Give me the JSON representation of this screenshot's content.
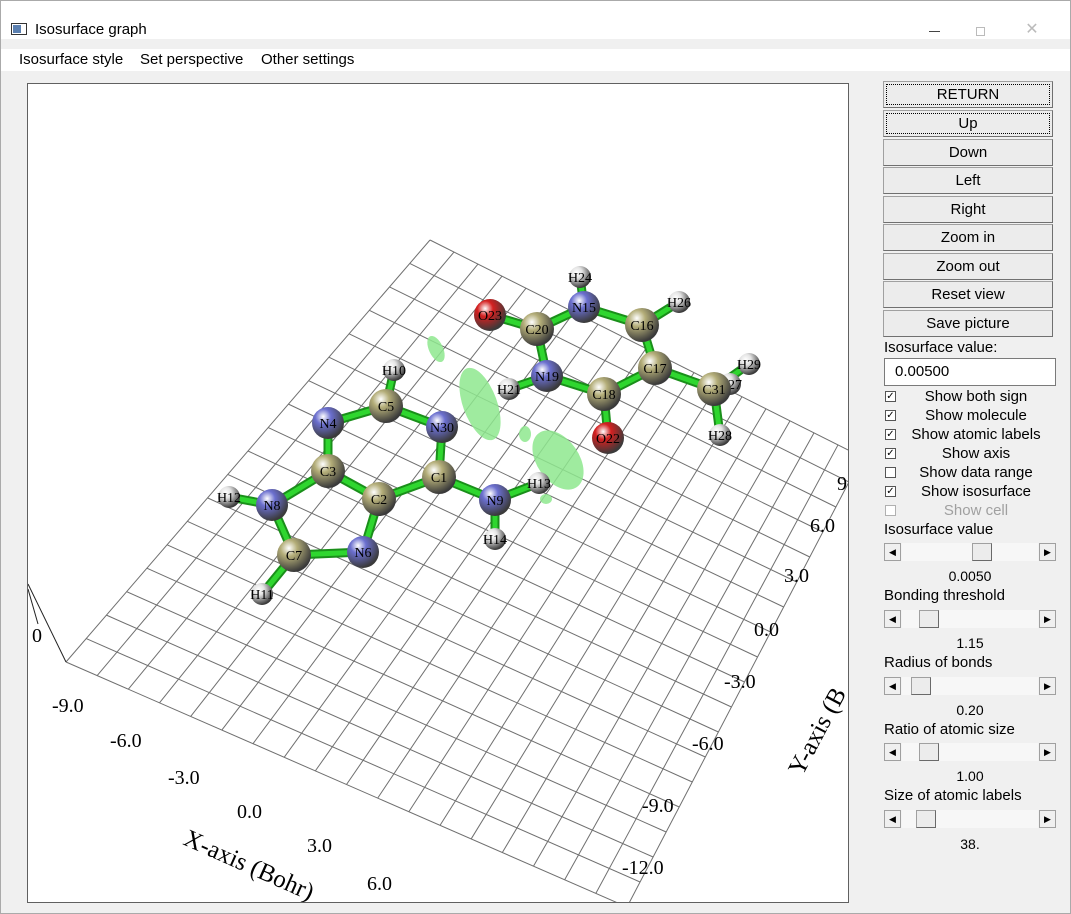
{
  "window": {
    "title": "Isosurface graph",
    "icon": "app-window-icon"
  },
  "menu": [
    "Isosurface style",
    "Set perspective",
    "Other settings"
  ],
  "buttons": [
    {
      "label": "RETURN",
      "focused": true
    },
    {
      "label": "Up",
      "focused": true
    },
    {
      "label": "Down"
    },
    {
      "label": "Left"
    },
    {
      "label": "Right"
    },
    {
      "label": "Zoom in"
    },
    {
      "label": "Zoom out"
    },
    {
      "label": "Reset view"
    },
    {
      "label": "Save picture"
    }
  ],
  "isovalue": {
    "label": "Isosurface value:",
    "value": "0.00500"
  },
  "checkboxes": [
    {
      "label": "Show both sign",
      "checked": true,
      "enabled": true
    },
    {
      "label": "Show molecule",
      "checked": true,
      "enabled": true
    },
    {
      "label": "Show atomic labels",
      "checked": true,
      "enabled": true
    },
    {
      "label": "Show axis",
      "checked": true,
      "enabled": true
    },
    {
      "label": "Show data range",
      "checked": false,
      "enabled": true
    },
    {
      "label": "Show isosurface",
      "checked": true,
      "enabled": true
    },
    {
      "label": "Show cell",
      "checked": false,
      "enabled": false
    }
  ],
  "sliders": [
    {
      "label": "Isosurface value",
      "value": "0.0050",
      "fraction": 0.6
    },
    {
      "label": "Bonding threshold",
      "value": "1.15",
      "fraction": 0.15
    },
    {
      "label": "Radius of bonds",
      "value": "0.20",
      "fraction": 0.08
    },
    {
      "label": "Ratio of atomic size",
      "value": "1.00",
      "fraction": 0.15
    },
    {
      "label": "Size of atomic labels",
      "value": "38.",
      "fraction": 0.12
    }
  ],
  "plot": {
    "x_axis_label": "X-axis (Bohr)",
    "y_axis_label": "Y-axis (B",
    "x_ticks": [
      "-9.0",
      "-6.0",
      "-3.0",
      "0.0",
      "3.0",
      "6.0"
    ],
    "y_ticks": [
      "-12.0",
      "-9.0",
      "-6.0",
      "-3.0",
      "0.0",
      "3.0",
      "6.0",
      "9"
    ],
    "z_tick_partial": "0",
    "colors": {
      "carbon": "#b3ad78",
      "nitrogen": "#6b6fcf",
      "hydrogen": "#e4e4e4",
      "oxygen": "#d42020",
      "bond": "#2fd62f",
      "isosurface": "#8ee88e",
      "grid": "#6f6f6f"
    },
    "atoms": [
      {
        "label": "C1",
        "element": "C"
      },
      {
        "label": "C2",
        "element": "C"
      },
      {
        "label": "C3",
        "element": "C"
      },
      {
        "label": "N4",
        "element": "N"
      },
      {
        "label": "C5",
        "element": "C"
      },
      {
        "label": "N6",
        "element": "N"
      },
      {
        "label": "C7",
        "element": "C"
      },
      {
        "label": "N8",
        "element": "N"
      },
      {
        "label": "N9",
        "element": "N"
      },
      {
        "label": "H10",
        "element": "H"
      },
      {
        "label": "H11",
        "element": "H"
      },
      {
        "label": "H12",
        "element": "H"
      },
      {
        "label": "H13",
        "element": "H"
      },
      {
        "label": "H14",
        "element": "H"
      },
      {
        "label": "N15",
        "element": "N"
      },
      {
        "label": "C16",
        "element": "C"
      },
      {
        "label": "C17",
        "element": "C"
      },
      {
        "label": "C18",
        "element": "C"
      },
      {
        "label": "N19",
        "element": "N"
      },
      {
        "label": "C20",
        "element": "C"
      },
      {
        "label": "H21",
        "element": "H"
      },
      {
        "label": "O22",
        "element": "O"
      },
      {
        "label": "O23",
        "element": "O"
      },
      {
        "label": "H24",
        "element": "H"
      },
      {
        "label": "H26",
        "element": "H"
      },
      {
        "label": "H27",
        "element": "H"
      },
      {
        "label": "H28",
        "element": "H"
      },
      {
        "label": "H29",
        "element": "H"
      },
      {
        "label": "N30",
        "element": "N"
      },
      {
        "label": "C31",
        "element": "C"
      }
    ],
    "bonds": [
      [
        "C1",
        "C2"
      ],
      [
        "C2",
        "C3"
      ],
      [
        "C3",
        "N4"
      ],
      [
        "N4",
        "C5"
      ],
      [
        "C5",
        "N30"
      ],
      [
        "N30",
        "C1"
      ],
      [
        "C2",
        "N6"
      ],
      [
        "N6",
        "C7"
      ],
      [
        "C7",
        "N8"
      ],
      [
        "N8",
        "C3"
      ],
      [
        "C1",
        "N9"
      ],
      [
        "N9",
        "H13"
      ],
      [
        "N9",
        "H14"
      ],
      [
        "C5",
        "H10"
      ],
      [
        "C7",
        "H11"
      ],
      [
        "N8",
        "H12"
      ],
      [
        "C20",
        "N15"
      ],
      [
        "N15",
        "C16"
      ],
      [
        "C16",
        "C17"
      ],
      [
        "C17",
        "C18"
      ],
      [
        "C18",
        "N19"
      ],
      [
        "N19",
        "C20"
      ],
      [
        "C20",
        "O23"
      ],
      [
        "C18",
        "O22"
      ],
      [
        "N19",
        "H21"
      ],
      [
        "N15",
        "H24"
      ],
      [
        "C16",
        "H26"
      ],
      [
        "C17",
        "C31"
      ],
      [
        "C31",
        "H27"
      ],
      [
        "C31",
        "H28"
      ],
      [
        "C31",
        "H29"
      ]
    ]
  }
}
